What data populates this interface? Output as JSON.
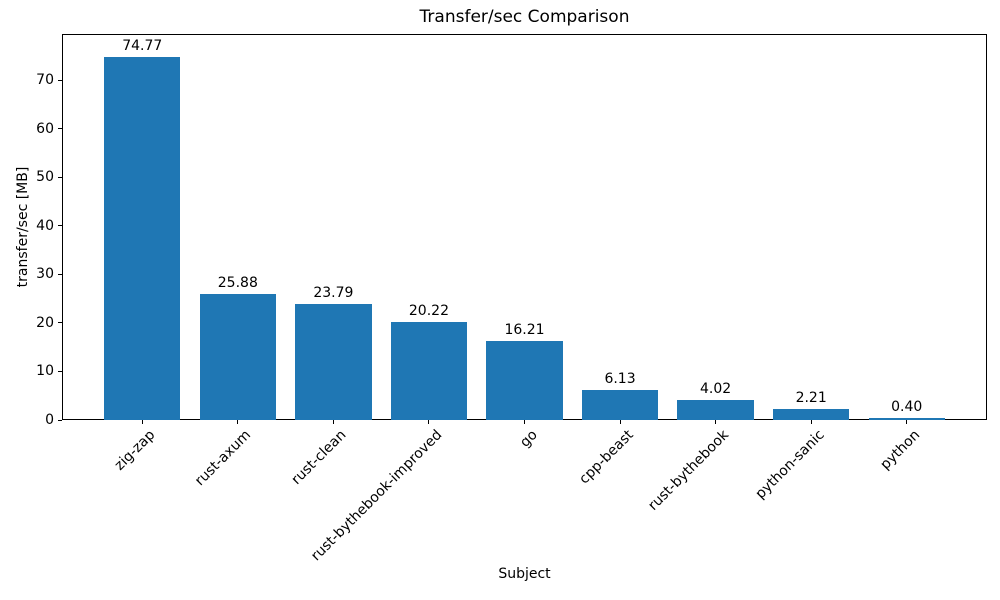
{
  "chart_data": {
    "type": "bar",
    "title": "Transfer/sec Comparison",
    "xlabel": "Subject",
    "ylabel": "transfer/sec [MB]",
    "categories": [
      "zig-zap",
      "rust-axum",
      "rust-clean",
      "rust-bythebook-improved",
      "go",
      "cpp-beast",
      "rust-bythebook",
      "python-sanic",
      "python"
    ],
    "values": [
      74.77,
      25.88,
      23.79,
      20.22,
      16.21,
      6.13,
      4.02,
      2.21,
      0.4
    ],
    "value_labels": [
      "74.77",
      "25.88",
      "23.79",
      "20.22",
      "16.21",
      "6.13",
      "4.02",
      "2.21",
      "0.40"
    ],
    "yticks": [
      0,
      10,
      20,
      30,
      40,
      50,
      60,
      70
    ],
    "ytick_labels": [
      "0",
      "10",
      "20",
      "30",
      "40",
      "50",
      "60",
      "70"
    ],
    "ylim": [
      0,
      79.5
    ],
    "bar_color": "#1f77b4",
    "text_color": "#000000",
    "grid": false,
    "legend": null,
    "x_tick_rotation_deg": 45
  }
}
